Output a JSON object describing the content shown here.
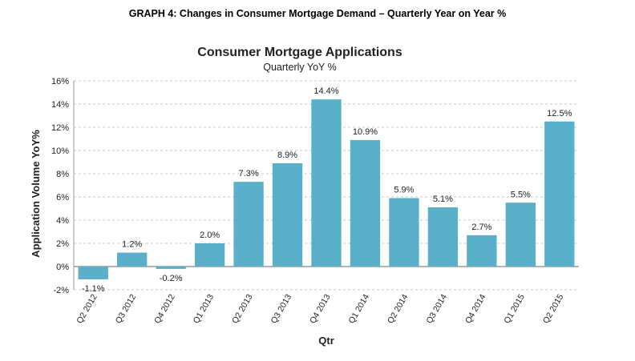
{
  "caption": "GRAPH 4: Changes in Consumer Mortgage Demand – Quarterly Year on Year %",
  "chart_data": {
    "type": "bar",
    "title": "Consumer Mortgage Applications",
    "subtitle": "Quarterly YoY %",
    "xlabel": "Qtr",
    "ylabel": "Application Volume YoY%",
    "categories": [
      "Q2 2012",
      "Q3 2012",
      "Q4 2012",
      "Q1 2013",
      "Q2 2013",
      "Q3 2013",
      "Q4 2013",
      "Q1 2014",
      "Q2 2014",
      "Q3 2014",
      "Q4 2014",
      "Q1 2015",
      "Q2 2015"
    ],
    "values": [
      -1.1,
      1.2,
      -0.2,
      2.0,
      7.3,
      8.9,
      14.4,
      10.9,
      5.9,
      5.1,
      2.7,
      5.5,
      12.5
    ],
    "data_labels": [
      "-1.1%",
      "1.2%",
      "-0.2%",
      "2.0%",
      "7.3%",
      "8.9%",
      "14.4%",
      "10.9%",
      "5.9%",
      "5.1%",
      "2.7%",
      "5.5%",
      "12.5%"
    ],
    "ylim": [
      -2,
      16
    ],
    "yticks": [
      -2,
      0,
      2,
      4,
      6,
      8,
      10,
      12,
      14,
      16
    ],
    "ytick_labels": [
      "-2%",
      "0%",
      "2%",
      "4%",
      "6%",
      "8%",
      "10%",
      "12%",
      "14%",
      "16%"
    ],
    "grid": "horizontal dashed",
    "bar_color": "#5aafc9"
  }
}
